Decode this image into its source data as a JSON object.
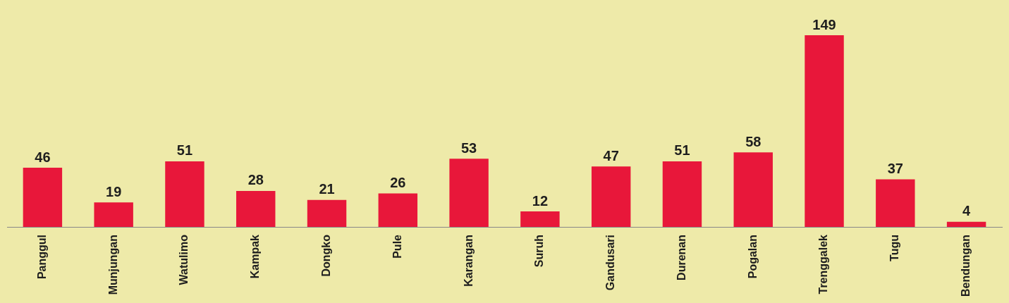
{
  "chart_data": {
    "type": "bar",
    "categories": [
      "Panggul",
      "Munjungan",
      "Watulimo",
      "Kampak",
      "Dongko",
      "Pule",
      "Karangan",
      "Suruh",
      "Gandusari",
      "Durenan",
      "Pogalan",
      "Trenggalek",
      "Tugu",
      "Bendungan"
    ],
    "values": [
      46,
      19,
      51,
      28,
      21,
      26,
      53,
      12,
      47,
      51,
      58,
      149,
      37,
      4
    ],
    "color": "#e8173a",
    "data_labels": true,
    "grid": false,
    "legend": false
  }
}
